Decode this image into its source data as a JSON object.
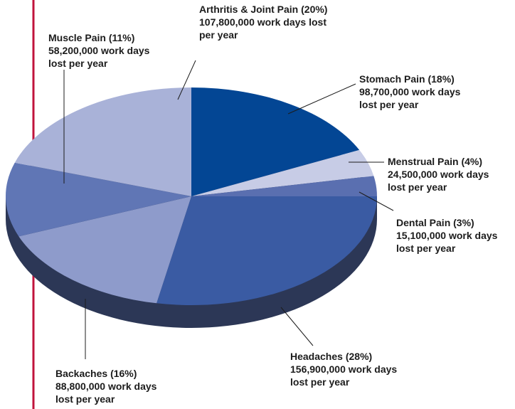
{
  "chart_data": {
    "type": "pie",
    "categories": [
      "Stomach Pain",
      "Menstrual Pain",
      "Dental Pain",
      "Headaches",
      "Backaches",
      "Muscle Pain",
      "Arthritis & Joint Pain"
    ],
    "values": [
      18,
      4,
      3,
      28,
      16,
      11,
      20
    ],
    "value_labels": [
      "(18%)",
      "(4%)",
      "(3%)",
      "(28%)",
      "(16%)",
      "(11%)",
      "(20%)"
    ],
    "details": [
      [
        "98,700,000 work days",
        "lost per year"
      ],
      [
        "24,500,000 work days",
        "lost per year"
      ],
      [
        "15,100,000 work days",
        "lost per year"
      ],
      [
        "156,900,000 work days",
        "lost per year"
      ],
      [
        "88,800,000 work days",
        "lost per year"
      ],
      [
        "58,200,000 work days",
        "lost per year"
      ],
      [
        "107,800,000 work days lost",
        "per year"
      ]
    ],
    "colors": [
      "#034694",
      "#c7cce6",
      "#5a6fb0",
      "#3a5ba3",
      "#8e9bcb",
      "#6076b5",
      "#a9b2d8"
    ]
  }
}
